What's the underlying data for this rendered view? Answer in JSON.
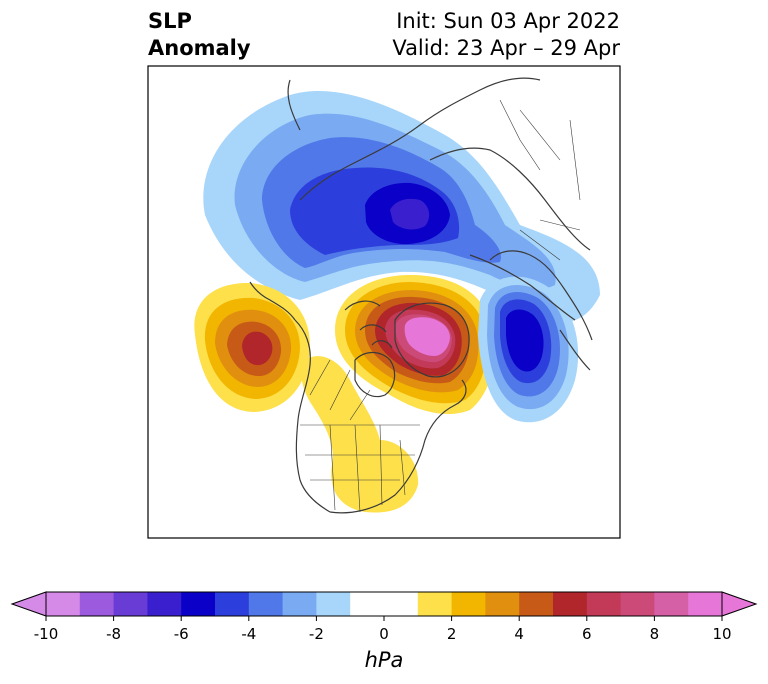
{
  "title": {
    "variable_line1": "SLP",
    "variable_line2": "Anomaly",
    "init_text": "Init: Sun 03 Apr 2022",
    "valid_text": "Valid: 23 Apr – 29 Apr"
  },
  "map": {
    "projection": "north-polar-stereographic",
    "region": "North America / Arctic",
    "anomaly_centers": [
      {
        "name": "arctic-low",
        "sign": "negative",
        "peak_hpa": -6
      },
      {
        "name": "greenland-high",
        "sign": "positive",
        "peak_hpa": 9
      },
      {
        "name": "north-pacific-high",
        "sign": "positive",
        "peak_hpa": 5
      },
      {
        "name": "north-atlantic-low",
        "sign": "negative",
        "peak_hpa": -5
      },
      {
        "name": "central-us-high",
        "sign": "positive",
        "peak_hpa": 1
      }
    ]
  },
  "colorbar": {
    "unit": "hPa",
    "extend": "both",
    "tick_values": [
      -10,
      -8,
      -6,
      -4,
      -2,
      0,
      2,
      4,
      6,
      8,
      10
    ],
    "tick_labels": [
      "-10",
      "-8",
      "-6",
      "-4",
      "-2",
      "0",
      "2",
      "4",
      "6",
      "8",
      "10"
    ],
    "colors": [
      "#d48ae6",
      "#9c5ade",
      "#6a3cd6",
      "#3a1fcf",
      "#0a00c8",
      "#2c3fdc",
      "#5078e8",
      "#7aaaf2",
      "#a8d6fa",
      "#ffffff",
      "#ffffff",
      "#fde04a",
      "#f2b600",
      "#e0900e",
      "#c85a18",
      "#b0262a",
      "#c23a58",
      "#cc4a78",
      "#d660a6",
      "#e676d8"
    ]
  }
}
